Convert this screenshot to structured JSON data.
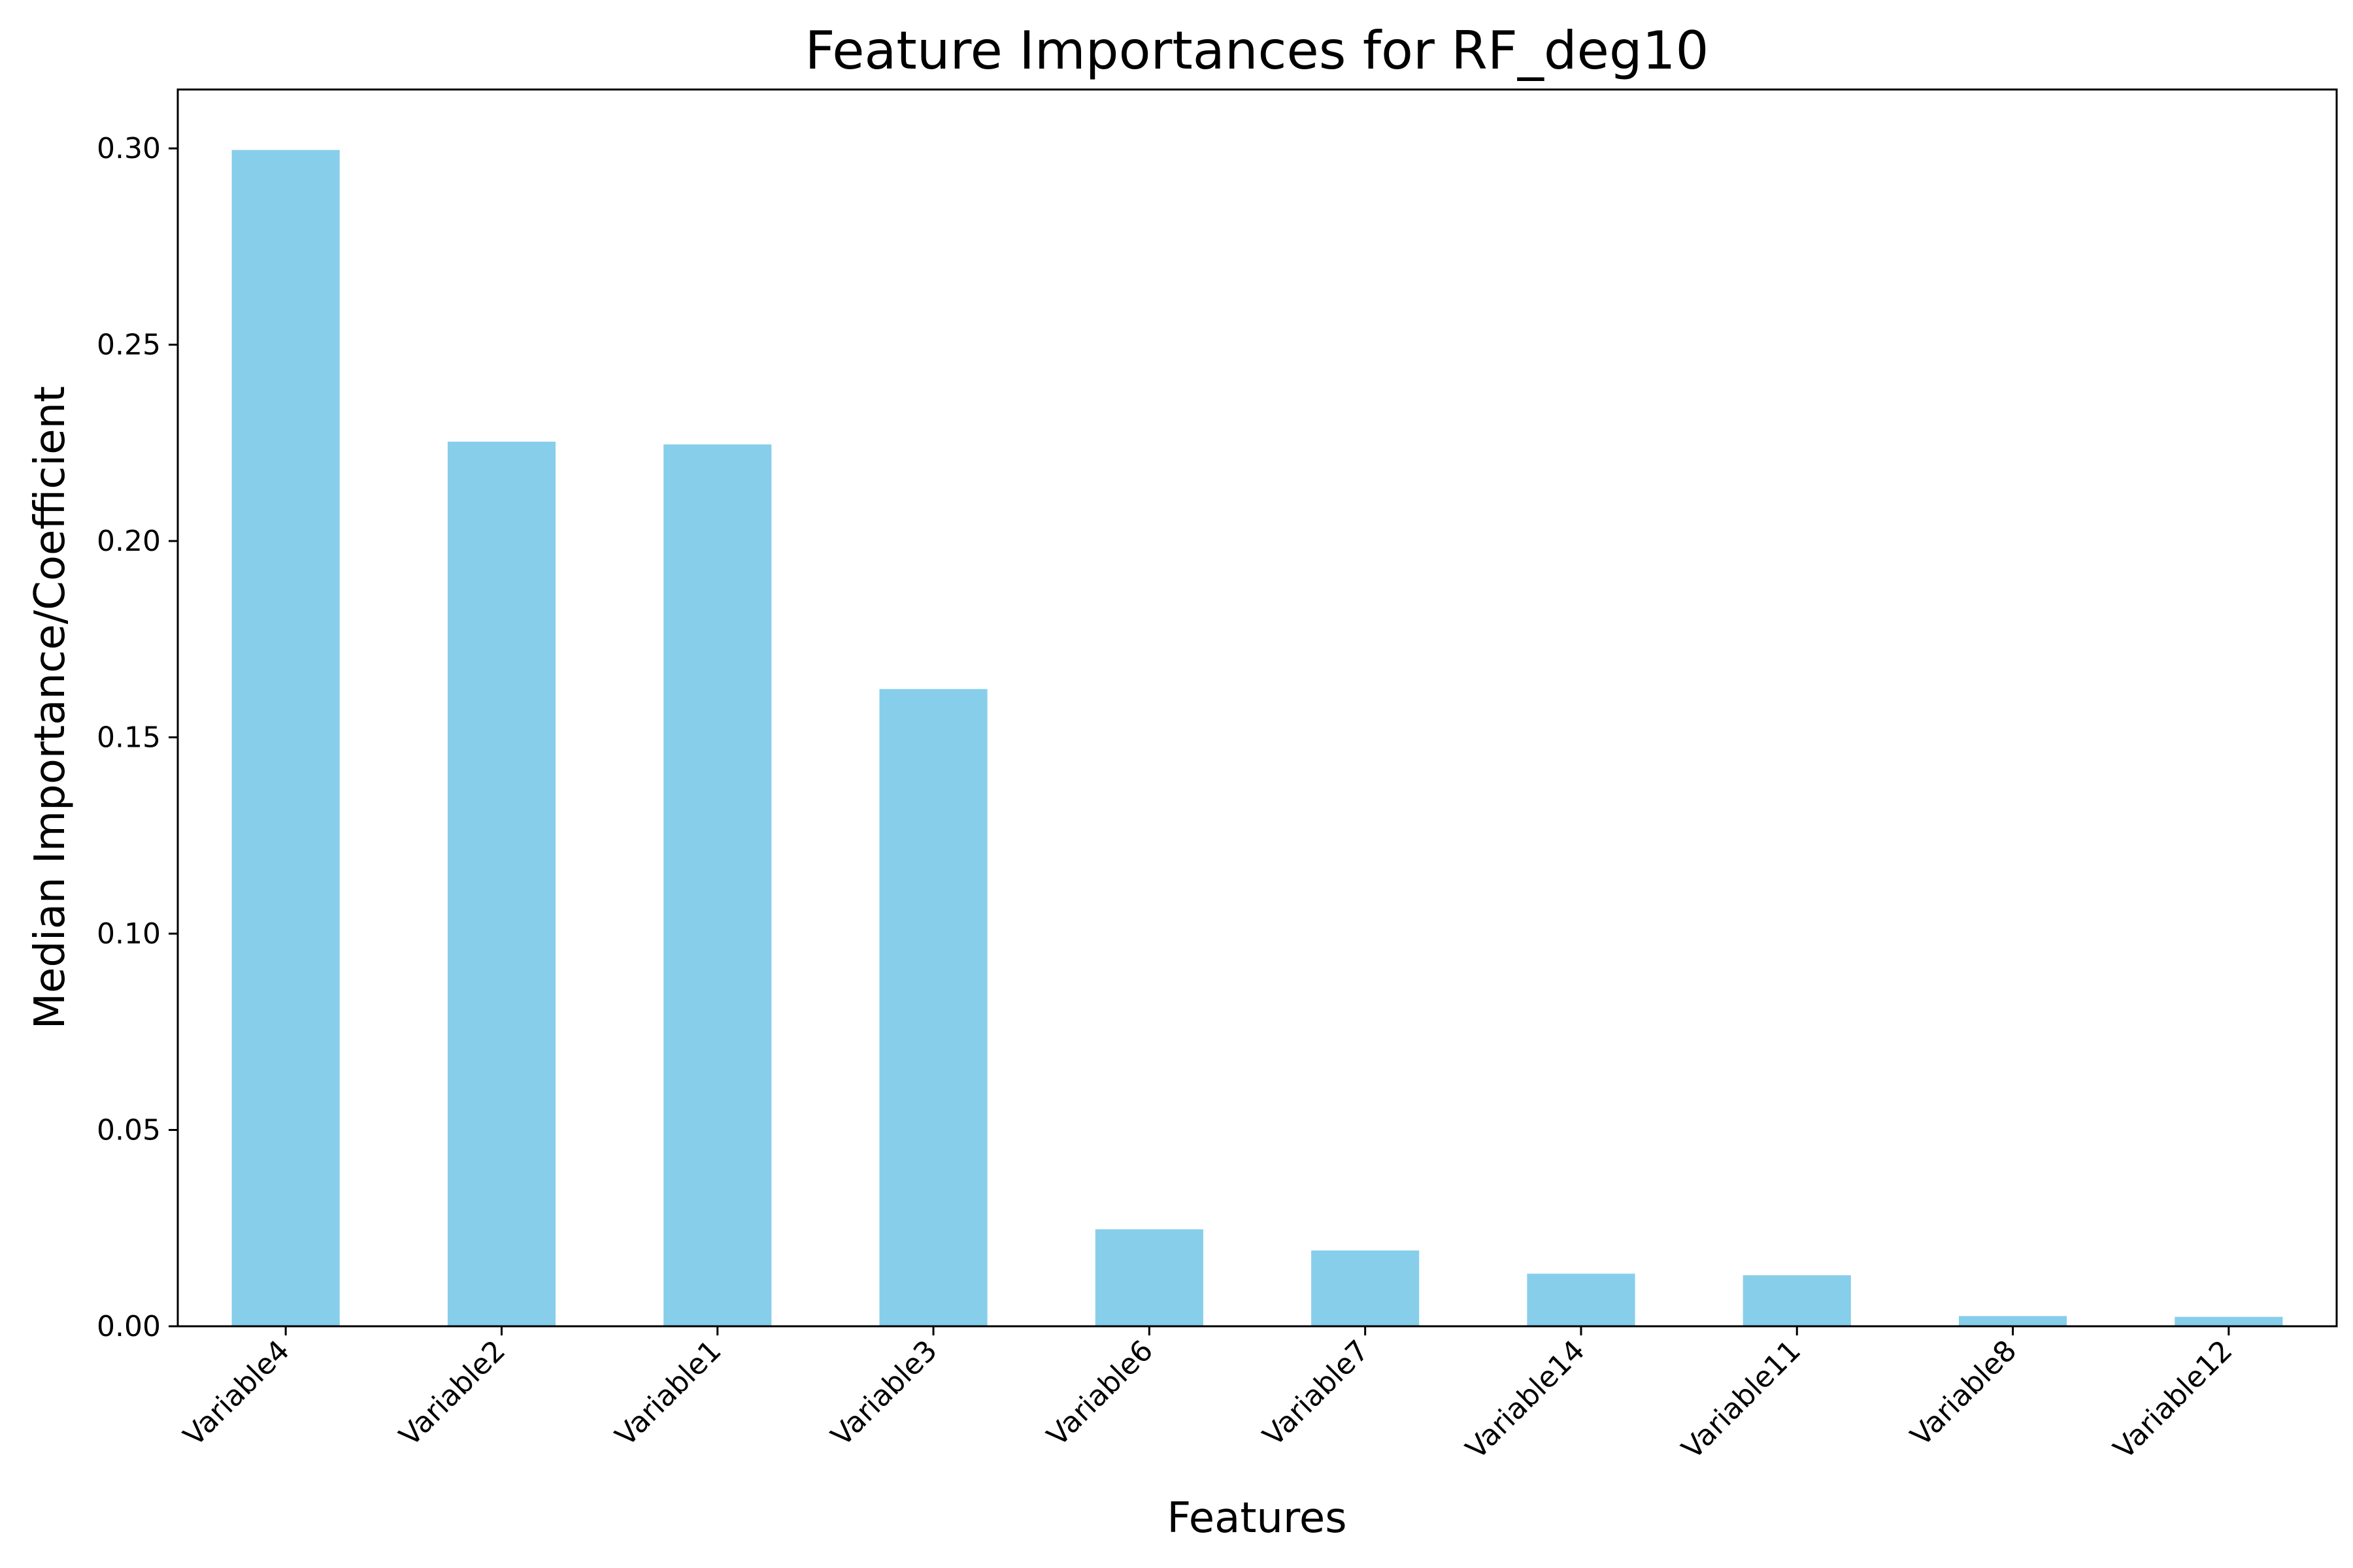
{
  "chart_data": {
    "type": "bar",
    "title": "Feature Importances for RF_deg10",
    "xlabel": "Features",
    "ylabel": "Median Importance/Coefficient",
    "categories": [
      "Variable4",
      "Variable2",
      "Variable1",
      "Variable3",
      "Variable6",
      "Variable7",
      "Variable14",
      "Variable11",
      "Variable8",
      "Variable12"
    ],
    "values": [
      0.2996,
      0.2253,
      0.2246,
      0.1623,
      0.0247,
      0.0193,
      0.0134,
      0.013,
      0.0026,
      0.0024
    ],
    "ylim": [
      0,
      0.315
    ],
    "yticks": [
      "0.00",
      "0.05",
      "0.10",
      "0.15",
      "0.20",
      "0.25",
      "0.30"
    ],
    "bar_color": "#87CEEB",
    "grid": false
  }
}
